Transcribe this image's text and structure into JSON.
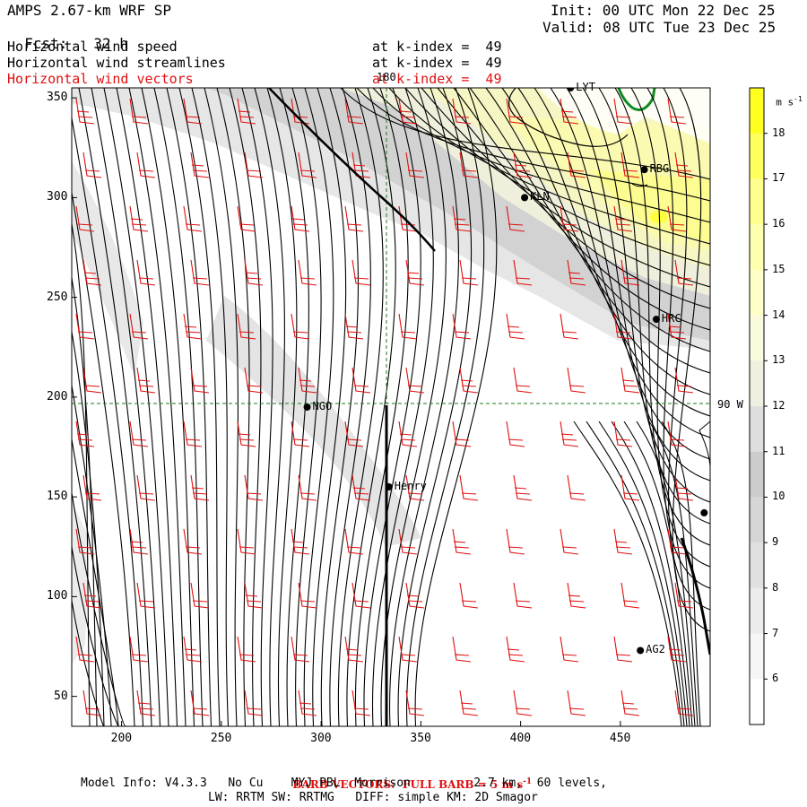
{
  "header": {
    "model": "AMPS 2.67-km WRF SP",
    "fcst_label": "Fcst:",
    "fcst_value": "32 h",
    "init": "Init: 00 UTC Mon 22 Dec 25",
    "valid": "Valid: 08 UTC Tue 23 Dec 25",
    "fields": [
      {
        "name": "Horizontal wind speed",
        "level": "at k-index =  49",
        "color": "#000000"
      },
      {
        "name": "Horizontal wind streamlines",
        "level": "at k-index =  49",
        "color": "#000000"
      },
      {
        "name": "Horizontal wind vectors",
        "level": "at k-index =  49",
        "color": "#e01010"
      }
    ]
  },
  "map": {
    "x_ticks": [
      "200",
      "250",
      "300",
      "350",
      "400",
      "450"
    ],
    "y_ticks": [
      "350",
      "300",
      "250",
      "200",
      "150",
      "100",
      "50"
    ],
    "meridian_label": "180",
    "parallel_label": "90 W",
    "stations": [
      {
        "label": "LYT",
        "x": 425,
        "y": 355
      },
      {
        "label": "RBG",
        "x": 462,
        "y": 314
      },
      {
        "label": "KLN",
        "x": 402,
        "y": 300
      },
      {
        "label": "HRC",
        "x": 468,
        "y": 239
      },
      {
        "label": "NGO",
        "x": 293,
        "y": 195
      },
      {
        "label": "Henry",
        "x": 334,
        "y": 155
      },
      {
        "label": "",
        "x": 492,
        "y": 142
      },
      {
        "label": "AG2",
        "x": 460,
        "y": 73
      }
    ]
  },
  "colorbar": {
    "units": "m s",
    "units_exp": "-1",
    "labels": [
      "18",
      "17",
      "16",
      "15",
      "14",
      "13",
      "12",
      "11",
      "10",
      "9",
      "8",
      "7",
      "6"
    ],
    "colors": [
      "#ffff20",
      "#ffff60",
      "#ffff90",
      "#ffffb0",
      "#ffffc8",
      "#fafadc",
      "#f0f0e0",
      "#dedede",
      "#cccccc",
      "#d6d6d6",
      "#e0e0e0",
      "#ececec",
      "#f6f6f6",
      "#ffffff"
    ]
  },
  "footer": {
    "barb_title": "BARB VECTORS:  FULL BARB = 5 m s",
    "barb_exp": "-1",
    "model_info": "Model Info: V4.3.3   No Cu    MYJ PBL  Morrison         2.7 km,  60 levels,",
    "physics": "LW: RRTM SW: RRTMG   DIFF: simple KM: 2D Smagor"
  }
}
